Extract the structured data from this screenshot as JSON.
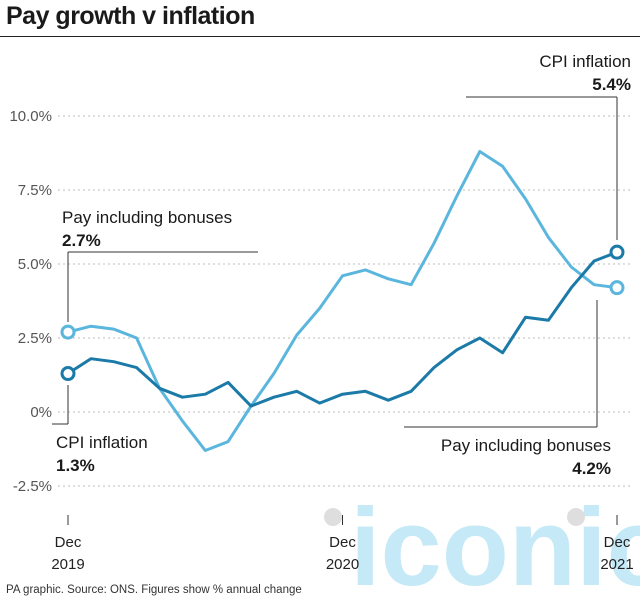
{
  "title": "Pay growth v inflation",
  "footer": "PA graphic. Source: ONS. Figures show % annual change",
  "watermark": "iconic",
  "colors": {
    "pay": "#5bb6dd",
    "cpi": "#1b7aa7",
    "grid": "#bdbdbd",
    "text": "#1a1a1a"
  },
  "chart_data": {
    "type": "line",
    "x": [
      "Dec 2019",
      "Jan 2020",
      "Feb 2020",
      "Mar 2020",
      "Apr 2020",
      "May 2020",
      "Jun 2020",
      "Jul 2020",
      "Aug 2020",
      "Sep 2020",
      "Oct 2020",
      "Nov 2020",
      "Dec 2020",
      "Jan 2021",
      "Feb 2021",
      "Mar 2021",
      "Apr 2021",
      "May 2021",
      "Jun 2021",
      "Jul 2021",
      "Aug 2021",
      "Sep 2021",
      "Oct 2021",
      "Nov 2021",
      "Dec 2021"
    ],
    "xticks": [
      {
        "index": 0,
        "line1": "Dec",
        "line2": "2019"
      },
      {
        "index": 12,
        "line1": "Dec",
        "line2": "2020"
      },
      {
        "index": 24,
        "line1": "Dec",
        "line2": "2021"
      }
    ],
    "yticks": [
      -2.5,
      0,
      2.5,
      5.0,
      7.5,
      10.0
    ],
    "ytick_labels": [
      "-2.5%",
      "0%",
      "2.5%",
      "5.0%",
      "7.5%",
      "10.0%"
    ],
    "ylim": [
      -2.5,
      10.0
    ],
    "grid": true,
    "series": [
      {
        "key": "pay",
        "name": "Pay including bonuses",
        "values": [
          2.7,
          2.9,
          2.8,
          2.5,
          0.8,
          -0.3,
          -1.3,
          -1.0,
          0.2,
          1.3,
          2.6,
          3.5,
          4.6,
          4.8,
          4.5,
          4.3,
          5.7,
          7.3,
          8.8,
          8.3,
          7.2,
          5.9,
          4.9,
          4.3,
          4.2
        ],
        "start_label": "Pay including bonuses",
        "start_value": "2.7%",
        "end_label": "Pay including bonuses",
        "end_value": "4.2%"
      },
      {
        "key": "cpi",
        "name": "CPI inflation",
        "values": [
          1.3,
          1.8,
          1.7,
          1.5,
          0.8,
          0.5,
          0.6,
          1.0,
          0.2,
          0.5,
          0.7,
          0.3,
          0.6,
          0.7,
          0.4,
          0.7,
          1.5,
          2.1,
          2.5,
          2.0,
          3.2,
          3.1,
          4.2,
          5.1,
          5.4
        ],
        "start_label": "CPI inflation",
        "start_value": "1.3%",
        "end_label": "CPI inflation",
        "end_value": "5.4%"
      }
    ]
  }
}
